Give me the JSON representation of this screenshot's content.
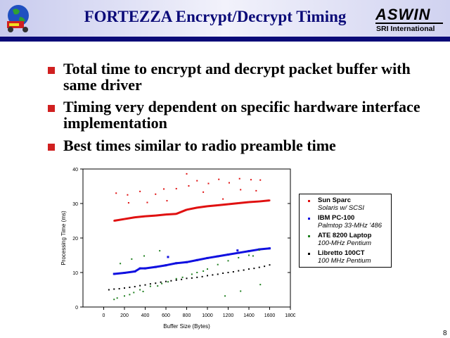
{
  "header": {
    "title": "FORTEZZA Encrypt/Decrypt Timing",
    "logo_text": "ASWIN",
    "org": "SRI International"
  },
  "bullets": [
    {
      "text": "Total time to encrypt and decrypt packet buffer with same driver"
    },
    {
      "text": "Timing very dependent on specific hardware interface implementation"
    },
    {
      "text": "Best times similar to radio preamble time"
    }
  ],
  "page_number": "8",
  "chart_data": {
    "type": "scatter",
    "title": "",
    "xlabel": "Buffer Size (Bytes)",
    "ylabel": "Processing Time (ms)",
    "xlim": [
      -200,
      1800
    ],
    "ylim": [
      0,
      40
    ],
    "xticks": [
      0,
      200,
      400,
      600,
      800,
      1000,
      1200,
      1400,
      1600,
      1800
    ],
    "yticks": [
      0,
      10,
      20,
      30,
      40
    ],
    "legend_position": "right",
    "series": [
      {
        "name": "Sun Sparc",
        "subtitle": "Solaris w/ SCSI",
        "color": "#e01010",
        "x": [
          100,
          200,
          300,
          400,
          500,
          600,
          700,
          800,
          900,
          1000,
          1100,
          1200,
          1300,
          1400,
          1500,
          1600,
          120,
          230,
          240,
          350,
          420,
          500,
          580,
          610,
          700,
          800,
          820,
          900,
          960,
          1010,
          1110,
          1150,
          1210,
          1310,
          1320,
          1420,
          1470,
          1510
        ],
        "y": [
          25,
          25.5,
          26,
          26.3,
          26.5,
          26.8,
          27,
          28.2,
          28.8,
          29.2,
          29.5,
          29.8,
          30.1,
          30.4,
          30.6,
          30.9,
          33,
          32.5,
          30.2,
          33.5,
          30.3,
          32.7,
          34.2,
          30.8,
          34.3,
          38.6,
          35.1,
          36.6,
          33.3,
          35.8,
          37,
          31.3,
          36,
          37.2,
          34,
          36.9,
          33.7,
          36.8
        ]
      },
      {
        "name": "IBM PC-100",
        "subtitle": "Palmtop 33-MHz '486",
        "color": "#1010e0",
        "x": [
          100,
          200,
          300,
          350,
          400,
          500,
          600,
          700,
          800,
          900,
          1000,
          1100,
          1200,
          1300,
          1400,
          1500,
          1600,
          620,
          1290
        ],
        "y": [
          9.6,
          9.9,
          10.3,
          11.2,
          11.2,
          11.6,
          12.1,
          12.7,
          13,
          13.6,
          14.2,
          14.7,
          15.2,
          15.7,
          16.2,
          16.7,
          17,
          14.5,
          16.4
        ]
      },
      {
        "name": "ATE 8200 Laptop",
        "subtitle": "100-MHz Pentium",
        "color": "#208020",
        "x": [
          100,
          130,
          200,
          250,
          290,
          350,
          380,
          450,
          520,
          560,
          620,
          700,
          760,
          850,
          900,
          960,
          1000,
          1100,
          1200,
          1300,
          1400,
          1500,
          160,
          270,
          390,
          540,
          1170,
          1320,
          1510,
          1440
        ],
        "y": [
          2.2,
          2.6,
          3.2,
          3.6,
          4.2,
          5,
          4.5,
          6,
          6.1,
          6.8,
          7.3,
          8.2,
          8.6,
          9.5,
          10,
          10.4,
          11,
          12.3,
          13.4,
          14.3,
          15,
          16.5,
          12.6,
          13.9,
          14.8,
          16.3,
          3.2,
          4.6,
          6.5,
          14.8
        ]
      },
      {
        "name": "Libretto 100CT",
        "subtitle": "100 MHz Pentium",
        "color": "#000000",
        "x": [
          50,
          100,
          150,
          200,
          250,
          300,
          350,
          400,
          450,
          500,
          550,
          600,
          650,
          700,
          750,
          800,
          850,
          900,
          950,
          1000,
          1050,
          1100,
          1150,
          1200,
          1250,
          1300,
          1350,
          1400,
          1450,
          1500,
          1550,
          1600
        ],
        "y": [
          5,
          5.2,
          5.3,
          5.5,
          5.7,
          5.9,
          6.2,
          6.4,
          6.7,
          6.9,
          7.2,
          7.4,
          7.6,
          7.8,
          8,
          8.3,
          8.4,
          8.6,
          8.8,
          9.1,
          9.3,
          9.5,
          9.8,
          10,
          10.2,
          10.5,
          10.7,
          11,
          11.2,
          11.5,
          11.8,
          12.2
        ]
      }
    ]
  }
}
